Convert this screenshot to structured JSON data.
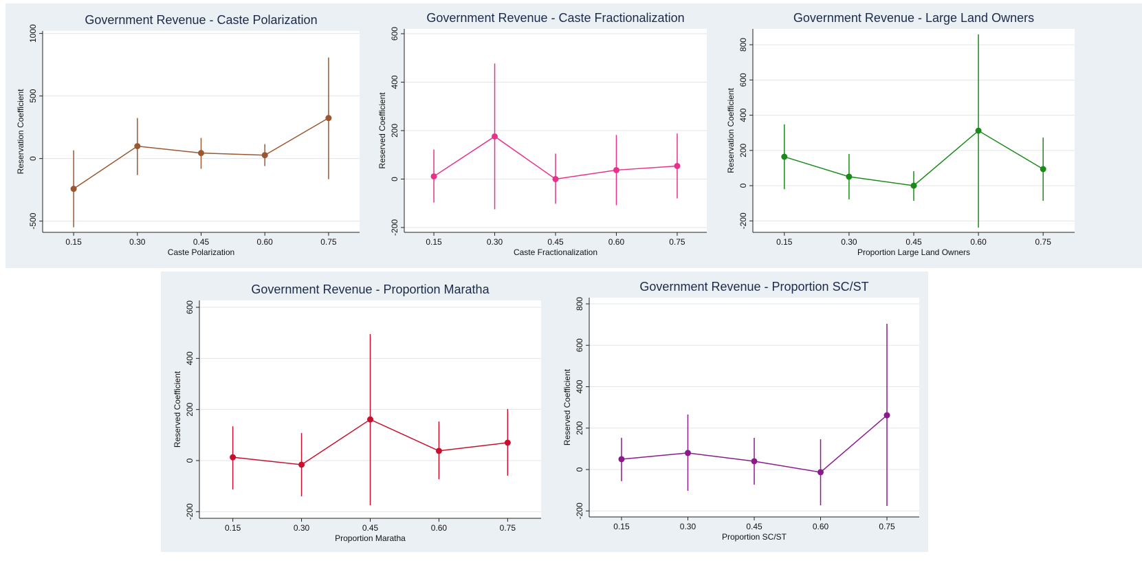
{
  "chart_data": [
    {
      "type": "line",
      "title": "Government Revenue - Caste Polarization",
      "xlabel": "Caste Polarization",
      "ylabel": "Reservation Coefficient",
      "x": [
        0.15,
        0.3,
        0.45,
        0.6,
        0.75
      ],
      "values": [
        -242,
        99,
        44,
        27,
        324
      ],
      "ci_low": [
        -549,
        -132,
        -82,
        -60,
        -165
      ],
      "ci_high": [
        66,
        324,
        165,
        115,
        808
      ],
      "color": "#9c5630",
      "xlim": [
        0.077,
        0.823
      ],
      "xticks": [
        0.15,
        {
          "value": 0.3,
          "label": "0.30"
        },
        0.45,
        {
          "value": 0.6,
          "label": "0.60"
        },
        0.75
      ],
      "ylim": [
        -590,
        1020
      ],
      "yticks": [
        -500,
        0,
        500,
        1000
      ],
      "grid": true
    },
    {
      "type": "line",
      "title": "Government Revenue - Caste Fractionalization",
      "xlabel": "Caste Fractionalization",
      "ylabel": "Reserved Coefficient",
      "x": [
        0.15,
        0.3,
        0.45,
        0.6,
        0.75
      ],
      "values": [
        11,
        176,
        0,
        37,
        54
      ],
      "ci_low": [
        -97,
        -125,
        -102,
        -108,
        -80
      ],
      "ci_high": [
        122,
        477,
        105,
        182,
        188
      ],
      "color": "#e8318a",
      "xlim": [
        0.077,
        0.823
      ],
      "xticks": [
        0.15,
        {
          "value": 0.3,
          "label": "0.30"
        },
        0.45,
        {
          "value": 0.6,
          "label": "0.60"
        },
        0.75
      ],
      "ylim": [
        -220,
        620
      ],
      "yticks": [
        -200,
        0,
        200,
        400,
        600
      ],
      "grid": true
    },
    {
      "type": "line",
      "title": "Government Revenue - Large Land Owners",
      "xlabel": "Proportion Large Land Owners",
      "ylabel": "Reservation Coefficient",
      "x": [
        0.15,
        0.3,
        0.45,
        0.6,
        0.75
      ],
      "values": [
        164,
        51,
        0,
        312,
        94
      ],
      "ci_low": [
        -20,
        -78,
        -86,
        -238,
        -86
      ],
      "ci_high": [
        348,
        180,
        82,
        859,
        273
      ],
      "color": "#1a8a1a",
      "xlim": [
        0.077,
        0.823
      ],
      "xticks": [
        0.15,
        {
          "value": 0.3,
          "label": "0.30"
        },
        0.45,
        {
          "value": 0.6,
          "label": "0.60"
        },
        0.75
      ],
      "ylim": [
        -265,
        890
      ],
      "yticks": [
        -200,
        0,
        200,
        400,
        600,
        800
      ],
      "grid": true
    },
    {
      "type": "line",
      "title": "Government Revenue - Proportion Maratha",
      "xlabel": "Proportion Maratha",
      "ylabel": "Reserved Coefficient",
      "x": [
        0.15,
        0.3,
        0.45,
        0.6,
        0.75
      ],
      "values": [
        13,
        -16,
        161,
        38,
        70
      ],
      "ci_low": [
        -113,
        -140,
        -175,
        -73,
        -59
      ],
      "ci_high": [
        134,
        108,
        495,
        153,
        202
      ],
      "color": "#c8102e",
      "xlim": [
        0.077,
        0.823
      ],
      "xticks": [
        0.15,
        {
          "value": 0.3,
          "label": "0.30"
        },
        0.45,
        {
          "value": 0.6,
          "label": "0.60"
        },
        0.75
      ],
      "ylim": [
        -226,
        627
      ],
      "yticks": [
        -200,
        0,
        200,
        400,
        600
      ],
      "grid": true
    },
    {
      "type": "line",
      "title": "Government Revenue - Proportion SC/ST",
      "xlabel": "Proportion SC/ST",
      "ylabel": "Reserved Coefficient",
      "x": [
        0.15,
        0.3,
        0.45,
        0.6,
        0.75
      ],
      "values": [
        50,
        80,
        40,
        -13,
        262
      ],
      "ci_low": [
        -56,
        -103,
        -73,
        -173,
        -176
      ],
      "ci_high": [
        153,
        266,
        153,
        146,
        704
      ],
      "color": "#8b1a8b",
      "xlim": [
        0.077,
        0.823
      ],
      "xticks": [
        0.15,
        {
          "value": 0.3,
          "label": "0.30"
        },
        0.45,
        {
          "value": 0.6,
          "label": "0.60"
        },
        0.75
      ],
      "ylim": [
        -229,
        830
      ],
      "yticks": [
        -200,
        0,
        200,
        400,
        600,
        800
      ],
      "grid": true
    }
  ]
}
